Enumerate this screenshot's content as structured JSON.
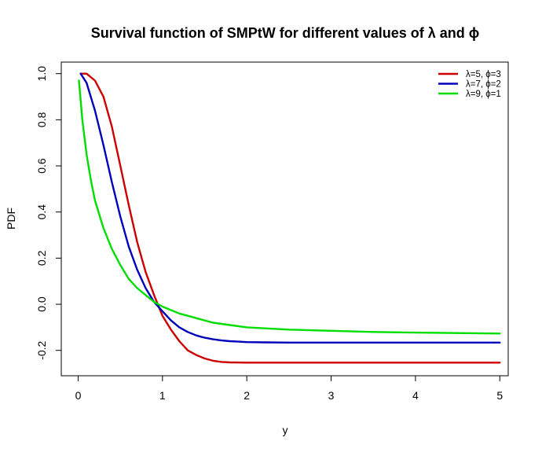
{
  "chart_data": {
    "type": "line",
    "title": "Survival function of SMPtW for different values of λ and ϕ",
    "xlabel": "y",
    "ylabel": "PDF",
    "xlim": [
      -0.2,
      5.1
    ],
    "ylim": [
      -0.31,
      1.05
    ],
    "xticks": [
      0,
      1,
      2,
      3,
      4,
      5
    ],
    "xtick_labels": [
      "0",
      "1",
      "2",
      "3",
      "4",
      "5"
    ],
    "yticks": [
      -0.2,
      0.0,
      0.2,
      0.4,
      0.6,
      0.8,
      1.0
    ],
    "ytick_labels": [
      "-0.2",
      "0.0",
      "0.2",
      "0.4",
      "0.6",
      "0.8",
      "1.0"
    ],
    "legend_position": "top-right",
    "grid": false,
    "series": [
      {
        "name": "λ=5, ϕ=3",
        "color": "#cc0000",
        "x": [
          0.03,
          0.1,
          0.2,
          0.3,
          0.4,
          0.5,
          0.6,
          0.7,
          0.8,
          0.9,
          1.0,
          1.1,
          1.2,
          1.3,
          1.4,
          1.5,
          1.6,
          1.7,
          1.8,
          2.0,
          2.5,
          3.0,
          4.0,
          5.0
        ],
        "values": [
          1.0,
          1.0,
          0.97,
          0.9,
          0.77,
          0.6,
          0.43,
          0.27,
          0.14,
          0.04,
          -0.05,
          -0.11,
          -0.16,
          -0.2,
          -0.22,
          -0.235,
          -0.245,
          -0.25,
          -0.252,
          -0.253,
          -0.253,
          -0.253,
          -0.253,
          -0.253
        ]
      },
      {
        "name": "λ=7, ϕ=2",
        "color": "#0000bb",
        "x": [
          0.03,
          0.1,
          0.2,
          0.3,
          0.4,
          0.5,
          0.6,
          0.7,
          0.8,
          0.9,
          1.0,
          1.1,
          1.2,
          1.3,
          1.4,
          1.5,
          1.6,
          1.7,
          1.8,
          1.9,
          2.0,
          2.2,
          2.5,
          3.0,
          4.0,
          5.0
        ],
        "values": [
          1.0,
          0.96,
          0.84,
          0.69,
          0.53,
          0.38,
          0.25,
          0.15,
          0.07,
          0.01,
          -0.03,
          -0.07,
          -0.1,
          -0.12,
          -0.135,
          -0.145,
          -0.152,
          -0.157,
          -0.16,
          -0.162,
          -0.164,
          -0.165,
          -0.166,
          -0.166,
          -0.166,
          -0.166
        ]
      },
      {
        "name": "λ=9, ϕ=1",
        "color": "#00dd00",
        "x": [
          0.01,
          0.05,
          0.1,
          0.15,
          0.2,
          0.3,
          0.4,
          0.5,
          0.6,
          0.7,
          0.8,
          0.9,
          1.0,
          1.2,
          1.4,
          1.6,
          1.8,
          2.0,
          2.5,
          3.0,
          3.5,
          4.0,
          4.5,
          5.0
        ],
        "values": [
          0.97,
          0.8,
          0.65,
          0.54,
          0.45,
          0.33,
          0.24,
          0.17,
          0.11,
          0.07,
          0.04,
          0.01,
          -0.01,
          -0.04,
          -0.06,
          -0.08,
          -0.09,
          -0.1,
          -0.11,
          -0.115,
          -0.12,
          -0.123,
          -0.125,
          -0.127
        ]
      }
    ]
  }
}
